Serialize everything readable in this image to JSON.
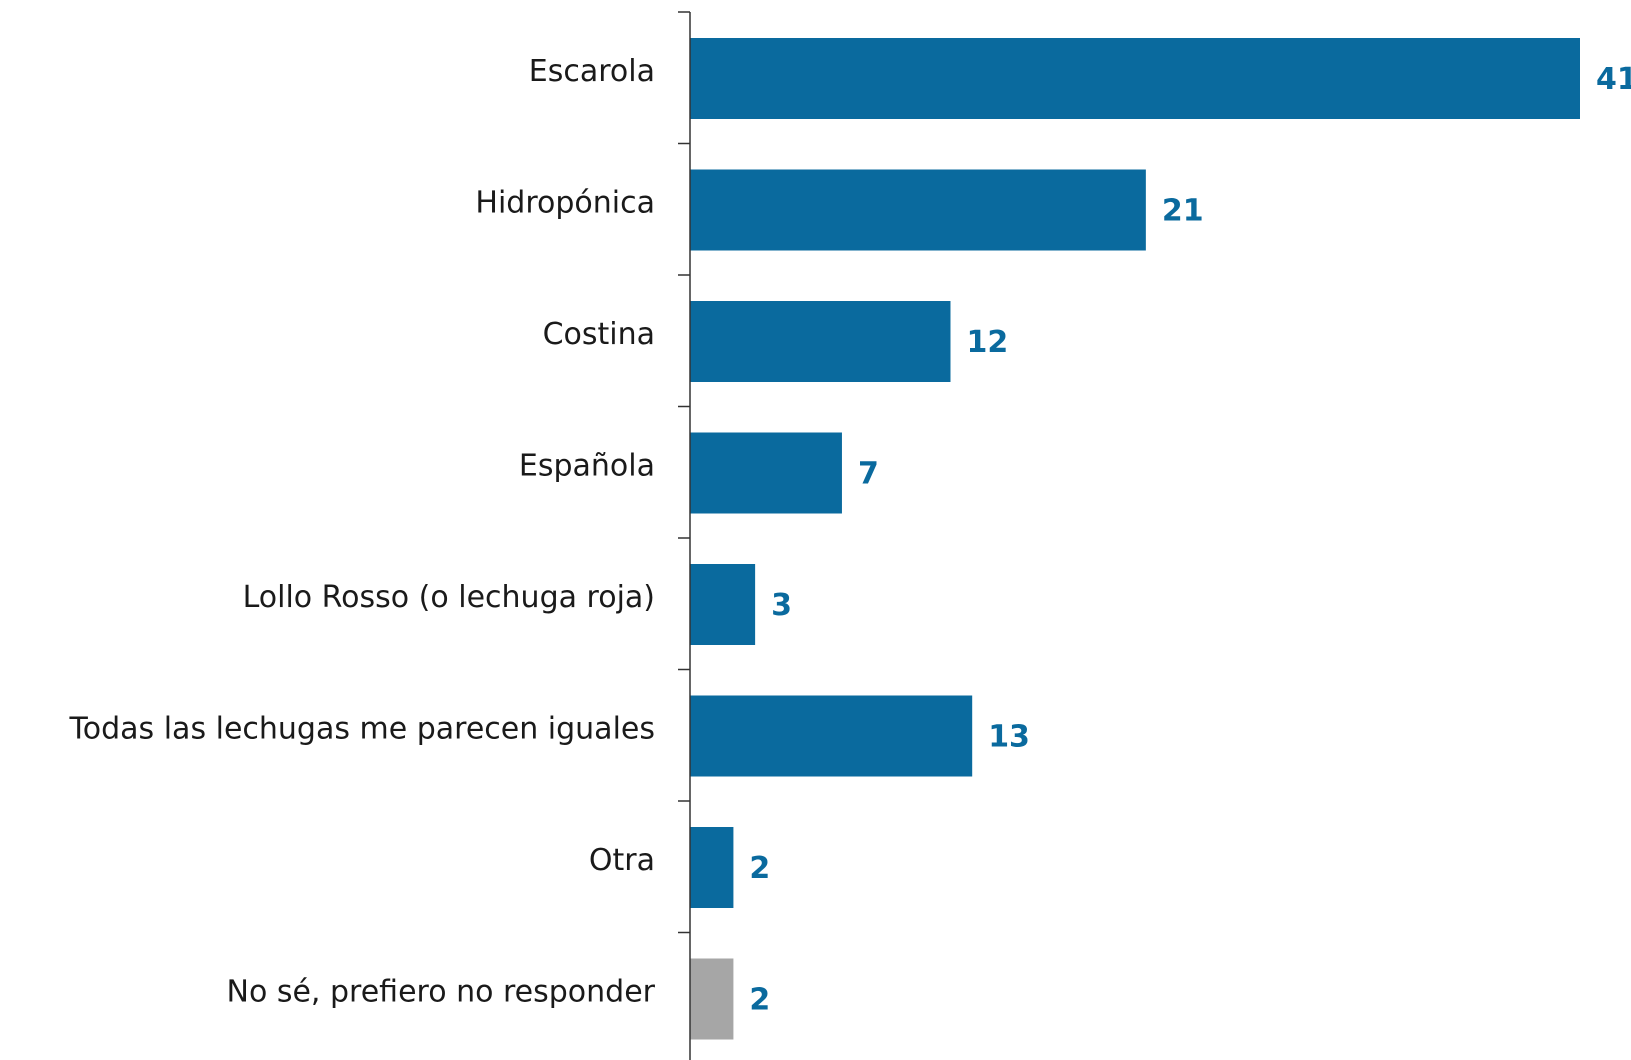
{
  "chart_data": {
    "type": "bar",
    "orientation": "horizontal",
    "title": "",
    "xlabel": "",
    "ylabel": "",
    "categories": [
      "Escarola",
      "Hidropónica",
      "Costina",
      "Española",
      "Lollo Rosso (o lechuga roja)",
      "Todas las lechugas me parecen iguales",
      "Otra",
      "No sé, prefiero no responder"
    ],
    "values": [
      41,
      21,
      12,
      7,
      3,
      13,
      2,
      2
    ],
    "value_labels": [
      "41",
      "21",
      "12",
      "7",
      "3",
      "13",
      "2",
      "2"
    ],
    "bar_colors": [
      "#0a6a9e",
      "#0a6a9e",
      "#0a6a9e",
      "#0a6a9e",
      "#0a6a9e",
      "#0a6a9e",
      "#0a6a9e",
      "#a6a6a6"
    ],
    "label_color": "#0a6a9e",
    "axis_color": "#333333",
    "xlim": [
      0,
      41
    ],
    "grid": false,
    "legend": "none"
  }
}
